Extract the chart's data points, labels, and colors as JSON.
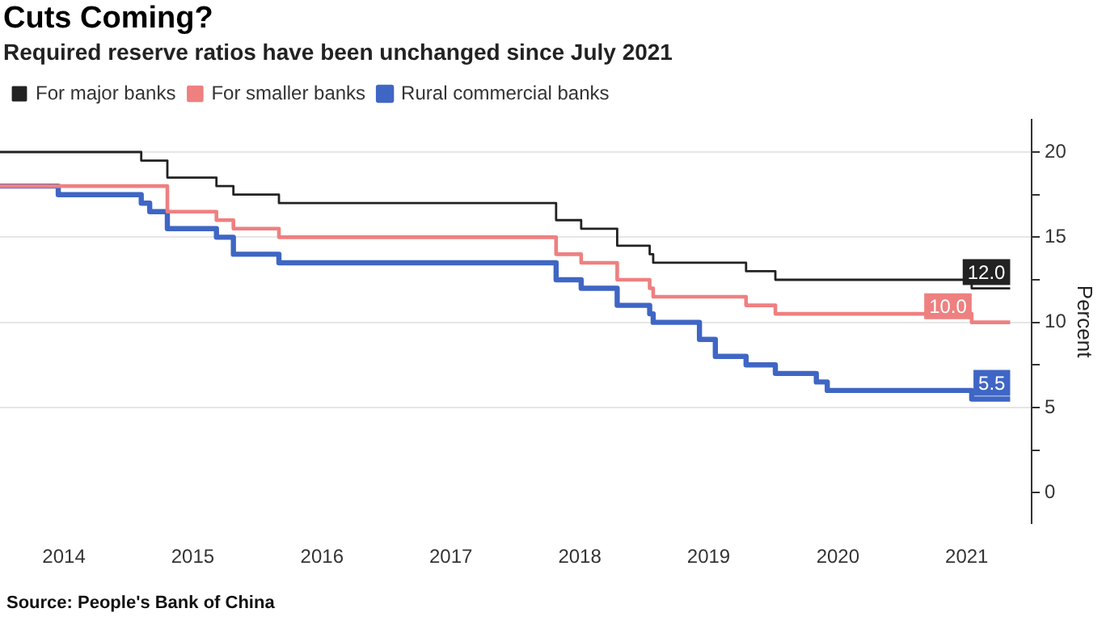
{
  "chart_data": {
    "type": "step",
    "title": "Cuts Coming?",
    "subtitle": "Required reserve ratios have been unchanged since July 2021",
    "y2label": "Percent",
    "annotations": [
      "Source:  People's Bank of China"
    ],
    "series": [
      {
        "name": "For major banks",
        "color": "#222222",
        "axis": "y2",
        "x": [
          "2014-01-01",
          "2015-02-05",
          "2015-04-20",
          "2015-09-06",
          "2015-10-24",
          "2016-03-01",
          "2018-04-25",
          "2018-07-05",
          "2018-10-15",
          "2019-01-15",
          "2019-01-25",
          "2019-10-15",
          "2020-01-06",
          "2021-07-15",
          "2021-11-01"
        ],
        "values": [
          20,
          19.5,
          18.5,
          18,
          17.5,
          17,
          16,
          15.5,
          14.5,
          14,
          13.5,
          13,
          12.5,
          12,
          12
        ],
        "value_labels": [
          null,
          null,
          null,
          null,
          null,
          null,
          null,
          null,
          null,
          null,
          null,
          null,
          null,
          null,
          "12.0"
        ]
      },
      {
        "name": "For smaller banks",
        "color": "#ee8080",
        "axis": "y2",
        "x": [
          "2014-01-01",
          "2015-04-20",
          "2015-09-06",
          "2015-10-24",
          "2016-03-01",
          "2018-04-25",
          "2018-07-05",
          "2018-10-15",
          "2019-01-15",
          "2019-01-25",
          "2019-10-15",
          "2020-01-06",
          "2021-07-15",
          "2021-11-01"
        ],
        "values": [
          18,
          16.5,
          16,
          15.5,
          15,
          14,
          13.5,
          12.5,
          12,
          11.5,
          11,
          10.5,
          10,
          10
        ],
        "value_labels": [
          null,
          null,
          null,
          null,
          null,
          null,
          null,
          null,
          null,
          null,
          null,
          null,
          "10.0",
          null
        ]
      },
      {
        "name": "Rural commercial banks",
        "color": "#3f66c4",
        "axis": "y2",
        "x": [
          "2014-01-01",
          "2014-06-15",
          "2015-02-05",
          "2015-03-01",
          "2015-04-20",
          "2015-09-06",
          "2015-10-24",
          "2016-03-01",
          "2018-04-25",
          "2018-07-05",
          "2018-10-15",
          "2019-01-15",
          "2019-01-25",
          "2019-06-05",
          "2019-07-20",
          "2019-10-15",
          "2020-01-06",
          "2020-05-01",
          "2020-06-01",
          "2021-07-15",
          "2021-11-01"
        ],
        "values": [
          18,
          17.5,
          17,
          16.5,
          15.5,
          15,
          14,
          13.5,
          12.5,
          12,
          11,
          10.5,
          10,
          9,
          8,
          7.5,
          7,
          6.5,
          6,
          5.5,
          5.5
        ],
        "value_labels": [
          null,
          null,
          null,
          null,
          null,
          null,
          null,
          null,
          null,
          null,
          null,
          null,
          null,
          null,
          null,
          null,
          null,
          null,
          null,
          null,
          "5.5"
        ]
      }
    ],
    "xlim": [
      "2014-01-01",
      "2022-01-01"
    ],
    "xticks": [
      {
        "value": "2014-07-01",
        "label": "2014"
      },
      {
        "value": "2015-07-01",
        "label": "2015"
      },
      {
        "value": "2016-07-01",
        "label": "2016"
      },
      {
        "value": "2017-07-01",
        "label": "2017"
      },
      {
        "value": "2018-07-01",
        "label": "2018"
      },
      {
        "value": "2019-07-01",
        "label": "2019"
      },
      {
        "value": "2020-07-01",
        "label": "2020"
      },
      {
        "value": "2021-07-01",
        "label": "2021"
      }
    ],
    "y2lim": [
      -1.8,
      21.9
    ],
    "y2ticks": [
      0,
      {
        "value": 2.5,
        "label": null
      },
      5,
      {
        "value": 7.5,
        "label": null
      },
      10,
      {
        "value": 12.5,
        "label": null
      },
      15,
      {
        "value": 17.5,
        "label": null
      },
      20
    ],
    "grid": "y",
    "legend": "top left",
    "marker": "none",
    "line_style": "solid"
  }
}
